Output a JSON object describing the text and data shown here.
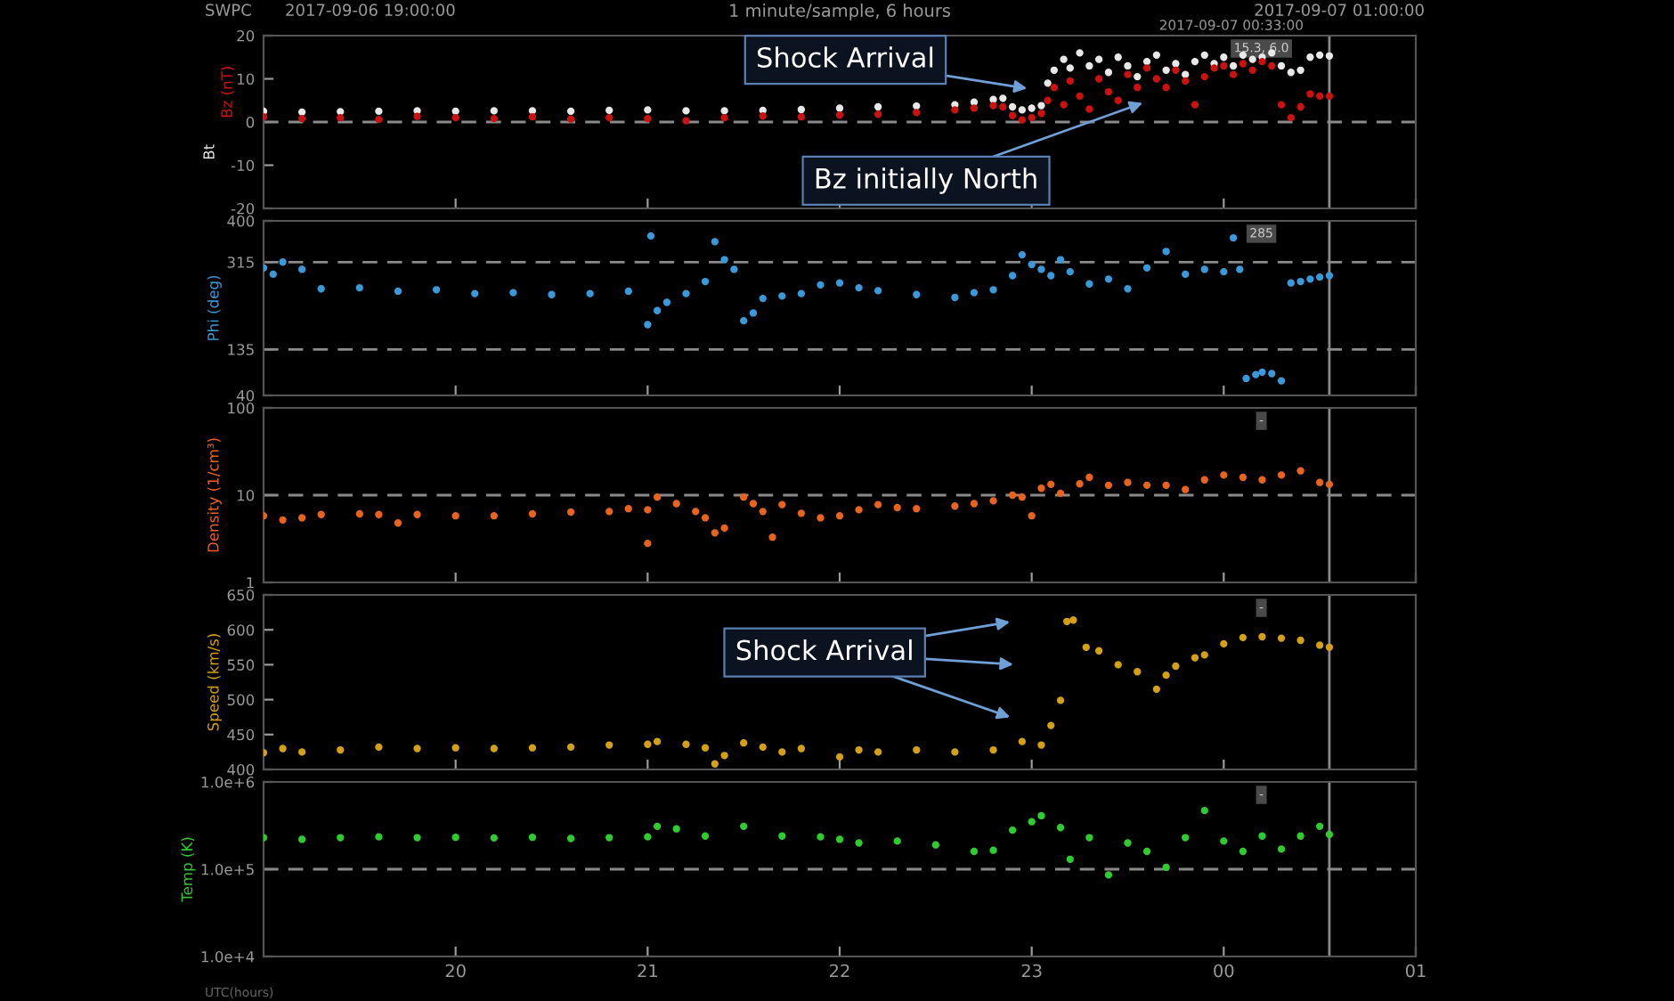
{
  "chart_data": [
    {
      "type": "scatter",
      "title": "1 minute/sample, 6 hours",
      "annotations": [
        "SWPC",
        "2017-09-06 19:00:00",
        "2017-09-07 01:00:00",
        "2017-09-07 00:33:00",
        "15.3, 6.0",
        "Shock Arrival",
        "Bz initially North"
      ],
      "xlim": [
        "2017-09-06T19:00",
        "2017-09-07T01:00"
      ],
      "xticks": [
        {
          "value": "2017-09-06T20:00",
          "label": null
        },
        {
          "value": "2017-09-06T21:00",
          "label": null
        },
        {
          "value": "2017-09-06T22:00",
          "label": null
        },
        {
          "value": "2017-09-06T23:00",
          "label": null
        },
        {
          "value": "2017-09-07T00:00",
          "label": null
        },
        {
          "value": "2017-09-07T01:00",
          "label": null
        }
      ],
      "ylim": [
        -20,
        20
      ],
      "yticks": [
        -20,
        -10,
        0,
        10,
        20
      ],
      "tick_labels": "y",
      "marker": "circle",
      "ref_lines": [
        {
          "axis": "y",
          "value": 0,
          "color": "#8a8a8a",
          "line_style": "dashed"
        },
        {
          "axis": "x",
          "value": "2017-09-07T00:33",
          "color": "#8a8a8a",
          "line_style": "solid"
        }
      ],
      "series": [
        {
          "name": "Bt",
          "color": "#e8e8e8",
          "x": [
            "2017-09-06T19:00",
            "2017-09-06T19:12",
            "2017-09-06T19:24",
            "2017-09-06T19:36",
            "2017-09-06T19:48",
            "2017-09-06T20:00",
            "2017-09-06T20:12",
            "2017-09-06T20:24",
            "2017-09-06T20:36",
            "2017-09-06T20:48",
            "2017-09-06T21:00",
            "2017-09-06T21:12",
            "2017-09-06T21:24",
            "2017-09-06T21:36",
            "2017-09-06T21:48",
            "2017-09-06T22:00",
            "2017-09-06T22:12",
            "2017-09-06T22:24",
            "2017-09-06T22:36",
            "2017-09-06T22:42",
            "2017-09-06T22:48",
            "2017-09-06T22:51",
            "2017-09-06T22:54",
            "2017-09-06T22:57",
            "2017-09-06T23:00",
            "2017-09-06T23:03",
            "2017-09-06T23:05",
            "2017-09-06T23:07",
            "2017-09-06T23:10",
            "2017-09-06T23:12",
            "2017-09-06T23:15",
            "2017-09-06T23:18",
            "2017-09-06T23:21",
            "2017-09-06T23:24",
            "2017-09-06T23:27",
            "2017-09-06T23:30",
            "2017-09-06T23:33",
            "2017-09-06T23:36",
            "2017-09-06T23:39",
            "2017-09-06T23:42",
            "2017-09-06T23:45",
            "2017-09-06T23:48",
            "2017-09-06T23:51",
            "2017-09-06T23:54",
            "2017-09-06T23:57",
            "2017-09-07T00:00",
            "2017-09-07T00:03",
            "2017-09-07T00:06",
            "2017-09-07T00:09",
            "2017-09-07T00:12",
            "2017-09-07T00:15",
            "2017-09-07T00:18",
            "2017-09-07T00:21",
            "2017-09-07T00:24",
            "2017-09-07T00:27",
            "2017-09-07T00:30",
            "2017-09-07T00:33"
          ],
          "values": [
            2.5,
            2.3,
            2.4,
            2.5,
            2.6,
            2.5,
            2.6,
            2.6,
            2.5,
            2.7,
            2.8,
            2.6,
            2.6,
            2.7,
            2.9,
            3.2,
            3.5,
            3.7,
            4.0,
            4.6,
            5.2,
            5.5,
            3.5,
            2.8,
            3.2,
            3.8,
            9.0,
            12.0,
            14.5,
            12.5,
            16.0,
            13.0,
            14.5,
            11.5,
            15.0,
            13.0,
            10.5,
            14.0,
            15.5,
            12.0,
            13.5,
            11.0,
            14.0,
            15.5,
            13.5,
            15.0,
            13.0,
            15.5,
            14.5,
            15.0,
            16.0,
            13.0,
            11.5,
            12.0,
            15.0,
            15.5,
            15.3
          ]
        },
        {
          "name": "Bz (nT)",
          "color": "#cc1111",
          "x": [
            "2017-09-06T19:00",
            "2017-09-06T19:12",
            "2017-09-06T19:24",
            "2017-09-06T19:36",
            "2017-09-06T19:48",
            "2017-09-06T20:00",
            "2017-09-06T20:12",
            "2017-09-06T20:24",
            "2017-09-06T20:36",
            "2017-09-06T20:48",
            "2017-09-06T21:00",
            "2017-09-06T21:12",
            "2017-09-06T21:24",
            "2017-09-06T21:36",
            "2017-09-06T21:48",
            "2017-09-06T22:00",
            "2017-09-06T22:12",
            "2017-09-06T22:24",
            "2017-09-06T22:36",
            "2017-09-06T22:42",
            "2017-09-06T22:48",
            "2017-09-06T22:51",
            "2017-09-06T22:54",
            "2017-09-06T22:57",
            "2017-09-06T23:00",
            "2017-09-06T23:03",
            "2017-09-06T23:05",
            "2017-09-06T23:07",
            "2017-09-06T23:10",
            "2017-09-06T23:12",
            "2017-09-06T23:15",
            "2017-09-06T23:18",
            "2017-09-06T23:21",
            "2017-09-06T23:24",
            "2017-09-06T23:27",
            "2017-09-06T23:30",
            "2017-09-06T23:33",
            "2017-09-06T23:36",
            "2017-09-06T23:39",
            "2017-09-06T23:42",
            "2017-09-06T23:45",
            "2017-09-06T23:48",
            "2017-09-06T23:51",
            "2017-09-06T23:54",
            "2017-09-06T23:57",
            "2017-09-07T00:00",
            "2017-09-07T00:03",
            "2017-09-07T00:06",
            "2017-09-07T00:09",
            "2017-09-07T00:12",
            "2017-09-07T00:15",
            "2017-09-07T00:18",
            "2017-09-07T00:21",
            "2017-09-07T00:24",
            "2017-09-07T00:27",
            "2017-09-07T00:30",
            "2017-09-07T00:33"
          ],
          "values": [
            1.2,
            0.8,
            1.0,
            0.6,
            1.3,
            1.0,
            0.8,
            1.2,
            0.7,
            1.0,
            0.8,
            0.3,
            1.0,
            1.4,
            1.2,
            1.6,
            1.8,
            2.2,
            2.8,
            3.2,
            3.8,
            3.5,
            1.5,
            0.5,
            1.0,
            2.0,
            5.0,
            8.0,
            4.0,
            9.5,
            6.0,
            3.0,
            10.0,
            7.0,
            5.0,
            11.0,
            8.0,
            12.5,
            10.0,
            8.0,
            12.0,
            9.5,
            4.0,
            10.5,
            12.5,
            13.0,
            11.0,
            13.5,
            12.0,
            14.0,
            13.0,
            4.0,
            1.0,
            3.5,
            6.5,
            6.0,
            6.0
          ]
        }
      ]
    },
    {
      "type": "scatter",
      "ylabel": "Phi (deg)",
      "annotations": [
        "285"
      ],
      "xlim": [
        "2017-09-06T19:00",
        "2017-09-07T01:00"
      ],
      "xticks": [
        {
          "value": "2017-09-06T20:00",
          "label": null
        },
        {
          "value": "2017-09-06T21:00",
          "label": null
        },
        {
          "value": "2017-09-06T22:00",
          "label": null
        },
        {
          "value": "2017-09-06T23:00",
          "label": null
        },
        {
          "value": "2017-09-07T00:00",
          "label": null
        },
        {
          "value": "2017-09-07T01:00",
          "label": null
        }
      ],
      "ylim": [
        40,
        400
      ],
      "yticks": [
        40,
        135,
        315,
        400
      ],
      "tick_labels": "y",
      "marker": "circle",
      "ref_lines": [
        {
          "axis": "y",
          "value": 135,
          "color": "#8a8a8a",
          "line_style": "dashed"
        },
        {
          "axis": "y",
          "value": 315,
          "color": "#8a8a8a",
          "line_style": "dashed"
        },
        {
          "axis": "x",
          "value": "2017-09-07T00:33",
          "color": "#8a8a8a",
          "line_style": "solid"
        }
      ],
      "series": [
        {
          "color": "#3a9ad9",
          "x": [
            "2017-09-06T19:00",
            "2017-09-06T19:03",
            "2017-09-06T19:06",
            "2017-09-06T19:12",
            "2017-09-06T19:18",
            "2017-09-06T19:30",
            "2017-09-06T19:42",
            "2017-09-06T19:54",
            "2017-09-06T20:06",
            "2017-09-06T20:18",
            "2017-09-06T20:30",
            "2017-09-06T20:42",
            "2017-09-06T20:54",
            "2017-09-06T21:00",
            "2017-09-06T21:01",
            "2017-09-06T21:03",
            "2017-09-06T21:06",
            "2017-09-06T21:12",
            "2017-09-06T21:18",
            "2017-09-06T21:21",
            "2017-09-06T21:24",
            "2017-09-06T21:27",
            "2017-09-06T21:30",
            "2017-09-06T21:33",
            "2017-09-06T21:36",
            "2017-09-06T21:42",
            "2017-09-06T21:48",
            "2017-09-06T21:54",
            "2017-09-06T22:00",
            "2017-09-06T22:06",
            "2017-09-06T22:12",
            "2017-09-06T22:24",
            "2017-09-06T22:36",
            "2017-09-06T22:42",
            "2017-09-06T22:48",
            "2017-09-06T22:54",
            "2017-09-06T22:57",
            "2017-09-06T23:00",
            "2017-09-06T23:03",
            "2017-09-06T23:06",
            "2017-09-06T23:09",
            "2017-09-06T23:12",
            "2017-09-06T23:18",
            "2017-09-06T23:24",
            "2017-09-06T23:30",
            "2017-09-06T23:36",
            "2017-09-06T23:42",
            "2017-09-06T23:48",
            "2017-09-06T23:54",
            "2017-09-07T00:00",
            "2017-09-07T00:03",
            "2017-09-07T00:05",
            "2017-09-07T00:07",
            "2017-09-07T00:10",
            "2017-09-07T00:12",
            "2017-09-07T00:15",
            "2017-09-07T00:18",
            "2017-09-07T00:21",
            "2017-09-07T00:24",
            "2017-09-07T00:27",
            "2017-09-07T00:30",
            "2017-09-07T00:33"
          ],
          "values": [
            303,
            290,
            315,
            300,
            260,
            262,
            255,
            258,
            250,
            252,
            248,
            250,
            255,
            186,
            369,
            215,
            232,
            250,
            275,
            357,
            320,
            300,
            194,
            210,
            240,
            245,
            250,
            268,
            272,
            262,
            256,
            248,
            242,
            252,
            258,
            287,
            330,
            310,
            300,
            287,
            320,
            295,
            270,
            280,
            260,
            303,
            337,
            290,
            300,
            295,
            365,
            300,
            75,
            83,
            88,
            85,
            70,
            272,
            275,
            280,
            284,
            287
          ]
        }
      ]
    },
    {
      "type": "scatter",
      "ylabel": "Density (1/cm³)",
      "annotations": [
        "-"
      ],
      "xlim": [
        "2017-09-06T19:00",
        "2017-09-07T01:00"
      ],
      "xticks": [
        {
          "value": "2017-09-06T20:00",
          "label": null
        },
        {
          "value": "2017-09-06T21:00",
          "label": null
        },
        {
          "value": "2017-09-06T22:00",
          "label": null
        },
        {
          "value": "2017-09-06T23:00",
          "label": null
        },
        {
          "value": "2017-09-07T00:00",
          "label": null
        },
        {
          "value": "2017-09-07T01:00",
          "label": null
        }
      ],
      "log": "y",
      "ylim": [
        1,
        100
      ],
      "yticks": [
        1,
        10,
        100
      ],
      "tick_labels": "y",
      "marker": "circle",
      "ref_lines": [
        {
          "axis": "y",
          "value": 10,
          "color": "#8a8a8a",
          "line_style": "dashed"
        },
        {
          "axis": "x",
          "value": "2017-09-07T00:33",
          "color": "#8a8a8a",
          "line_style": "solid"
        }
      ],
      "series": [
        {
          "color": "#e8641e",
          "x": [
            "2017-09-06T19:00",
            "2017-09-06T19:06",
            "2017-09-06T19:12",
            "2017-09-06T19:18",
            "2017-09-06T19:30",
            "2017-09-06T19:36",
            "2017-09-06T19:42",
            "2017-09-06T19:48",
            "2017-09-06T20:00",
            "2017-09-06T20:12",
            "2017-09-06T20:24",
            "2017-09-06T20:36",
            "2017-09-06T20:48",
            "2017-09-06T20:54",
            "2017-09-06T21:00",
            "2017-09-06T21:00",
            "2017-09-06T21:03",
            "2017-09-06T21:09",
            "2017-09-06T21:15",
            "2017-09-06T21:18",
            "2017-09-06T21:21",
            "2017-09-06T21:24",
            "2017-09-06T21:30",
            "2017-09-06T21:33",
            "2017-09-06T21:36",
            "2017-09-06T21:39",
            "2017-09-06T21:42",
            "2017-09-06T21:48",
            "2017-09-06T21:54",
            "2017-09-06T22:00",
            "2017-09-06T22:06",
            "2017-09-06T22:12",
            "2017-09-06T22:18",
            "2017-09-06T22:24",
            "2017-09-06T22:36",
            "2017-09-06T22:42",
            "2017-09-06T22:48",
            "2017-09-06T22:54",
            "2017-09-06T22:57",
            "2017-09-06T23:00",
            "2017-09-06T23:03",
            "2017-09-06T23:06",
            "2017-09-06T23:09",
            "2017-09-06T23:15",
            "2017-09-06T23:18",
            "2017-09-06T23:24",
            "2017-09-06T23:30",
            "2017-09-06T23:36",
            "2017-09-06T23:42",
            "2017-09-06T23:48",
            "2017-09-06T23:54",
            "2017-09-07T00:00",
            "2017-09-07T00:06",
            "2017-09-07T00:12",
            "2017-09-07T00:18",
            "2017-09-07T00:24",
            "2017-09-07T00:30",
            "2017-09-07T00:33"
          ],
          "values": [
            5.8,
            5.2,
            5.5,
            6.0,
            6.1,
            6.0,
            4.8,
            6.0,
            5.8,
            5.8,
            6.1,
            6.4,
            6.5,
            7.0,
            6.8,
            2.8,
            9.5,
            8.0,
            6.5,
            5.5,
            3.7,
            4.2,
            9.5,
            8.0,
            6.5,
            3.3,
            7.8,
            6.2,
            5.5,
            5.8,
            6.8,
            7.8,
            7.2,
            7.0,
            7.5,
            8.0,
            8.6,
            10.0,
            9.5,
            5.8,
            12.0,
            13.3,
            10.5,
            13.5,
            16.0,
            13.0,
            14.0,
            13.0,
            13.0,
            11.6,
            15.0,
            17.0,
            16.0,
            15.0,
            17.0,
            19.0,
            14.0,
            13.3
          ]
        }
      ]
    },
    {
      "type": "scatter",
      "ylabel": "Speed (km/s)",
      "annotations": [
        "-",
        "Shock Arrival"
      ],
      "xlim": [
        "2017-09-06T19:00",
        "2017-09-07T01:00"
      ],
      "xticks": [
        {
          "value": "2017-09-06T20:00",
          "label": null
        },
        {
          "value": "2017-09-06T21:00",
          "label": null
        },
        {
          "value": "2017-09-06T22:00",
          "label": null
        },
        {
          "value": "2017-09-06T23:00",
          "label": null
        },
        {
          "value": "2017-09-07T00:00",
          "label": null
        },
        {
          "value": "2017-09-07T01:00",
          "label": null
        }
      ],
      "ylim": [
        400,
        650
      ],
      "yticks": [
        400,
        450,
        500,
        550,
        600,
        650
      ],
      "tick_labels": "y",
      "marker": "circle",
      "ref_lines": [
        {
          "axis": "x",
          "value": "2017-09-07T00:33",
          "color": "#8a8a8a",
          "line_style": "solid"
        }
      ],
      "series": [
        {
          "color": "#d4a017",
          "x": [
            "2017-09-06T19:00",
            "2017-09-06T19:06",
            "2017-09-06T19:12",
            "2017-09-06T19:24",
            "2017-09-06T19:36",
            "2017-09-06T19:48",
            "2017-09-06T20:00",
            "2017-09-06T20:12",
            "2017-09-06T20:24",
            "2017-09-06T20:36",
            "2017-09-06T20:48",
            "2017-09-06T21:00",
            "2017-09-06T21:03",
            "2017-09-06T21:12",
            "2017-09-06T21:18",
            "2017-09-06T21:21",
            "2017-09-06T21:24",
            "2017-09-06T21:30",
            "2017-09-06T21:36",
            "2017-09-06T21:42",
            "2017-09-06T21:48",
            "2017-09-06T22:00",
            "2017-09-06T22:06",
            "2017-09-06T22:12",
            "2017-09-06T22:24",
            "2017-09-06T22:36",
            "2017-09-06T22:48",
            "2017-09-06T22:57",
            "2017-09-06T23:03",
            "2017-09-06T23:06",
            "2017-09-06T23:09",
            "2017-09-06T23:11",
            "2017-09-06T23:13",
            "2017-09-06T23:17",
            "2017-09-06T23:21",
            "2017-09-06T23:27",
            "2017-09-06T23:33",
            "2017-09-06T23:39",
            "2017-09-06T23:42",
            "2017-09-06T23:45",
            "2017-09-06T23:51",
            "2017-09-06T23:54",
            "2017-09-07T00:00",
            "2017-09-07T00:06",
            "2017-09-07T00:12",
            "2017-09-07T00:18",
            "2017-09-07T00:24",
            "2017-09-07T00:30",
            "2017-09-07T00:33"
          ],
          "values": [
            424,
            430,
            425,
            428,
            432,
            430,
            431,
            430,
            431,
            432,
            435,
            436,
            440,
            436,
            431,
            408,
            420,
            438,
            432,
            425,
            430,
            418,
            428,
            425,
            428,
            425,
            428,
            440,
            435,
            463,
            499,
            612,
            614,
            575,
            570,
            550,
            540,
            515,
            535,
            548,
            560,
            564,
            580,
            589,
            590,
            588,
            585,
            578,
            575
          ]
        }
      ]
    },
    {
      "type": "scatter",
      "ylabel": "Temp (K)",
      "xlabel": "UTC(hours)",
      "annotations": [
        "-"
      ],
      "xlim": [
        "2017-09-06T19:00",
        "2017-09-07T01:00"
      ],
      "xticks": [
        {
          "value": "2017-09-06T20:00",
          "label": "20"
        },
        {
          "value": "2017-09-06T21:00",
          "label": "21"
        },
        {
          "value": "2017-09-06T22:00",
          "label": "22"
        },
        {
          "value": "2017-09-06T23:00",
          "label": "23"
        },
        {
          "value": "2017-09-07T00:00",
          "label": "00"
        },
        {
          "value": "2017-09-07T01:00",
          "label": "01"
        }
      ],
      "log": "y",
      "ylim": [
        10000,
        1000000
      ],
      "yticks": [
        {
          "value": 10000,
          "label": "1.0e+4"
        },
        {
          "value": 100000,
          "label": "1.0e+5"
        },
        {
          "value": 1000000,
          "label": "1.0e+6"
        }
      ],
      "marker": "circle",
      "ref_lines": [
        {
          "axis": "y",
          "value": 100000,
          "color": "#8a8a8a",
          "line_style": "dashed"
        },
        {
          "axis": "x",
          "value": "2017-09-07T00:33",
          "color": "#8a8a8a",
          "line_style": "solid"
        }
      ],
      "series": [
        {
          "color": "#2ecc2e",
          "x": [
            "2017-09-06T19:00",
            "2017-09-06T19:12",
            "2017-09-06T19:24",
            "2017-09-06T19:36",
            "2017-09-06T19:48",
            "2017-09-06T20:00",
            "2017-09-06T20:12",
            "2017-09-06T20:24",
            "2017-09-06T20:36",
            "2017-09-06T20:48",
            "2017-09-06T21:00",
            "2017-09-06T21:03",
            "2017-09-06T21:09",
            "2017-09-06T21:18",
            "2017-09-06T21:30",
            "2017-09-06T21:42",
            "2017-09-06T21:54",
            "2017-09-06T22:00",
            "2017-09-06T22:06",
            "2017-09-06T22:18",
            "2017-09-06T22:30",
            "2017-09-06T22:42",
            "2017-09-06T22:48",
            "2017-09-06T22:54",
            "2017-09-06T23:00",
            "2017-09-06T23:03",
            "2017-09-06T23:09",
            "2017-09-06T23:12",
            "2017-09-06T23:18",
            "2017-09-06T23:24",
            "2017-09-06T23:30",
            "2017-09-06T23:36",
            "2017-09-06T23:42",
            "2017-09-06T23:48",
            "2017-09-06T23:54",
            "2017-09-07T00:00",
            "2017-09-07T00:06",
            "2017-09-07T00:12",
            "2017-09-07T00:18",
            "2017-09-07T00:24",
            "2017-09-07T00:30",
            "2017-09-07T00:33"
          ],
          "values": [
            230000,
            220000,
            230000,
            235000,
            230000,
            232000,
            228000,
            232000,
            225000,
            230000,
            235000,
            310000,
            290000,
            240000,
            310000,
            240000,
            235000,
            220000,
            200000,
            210000,
            190000,
            160000,
            165000,
            280000,
            350000,
            410000,
            300000,
            130000,
            230000,
            86000,
            200000,
            160000,
            105000,
            230000,
            470000,
            210000,
            160000,
            240000,
            170000,
            240000,
            310000,
            250000
          ]
        }
      ]
    }
  ]
}
